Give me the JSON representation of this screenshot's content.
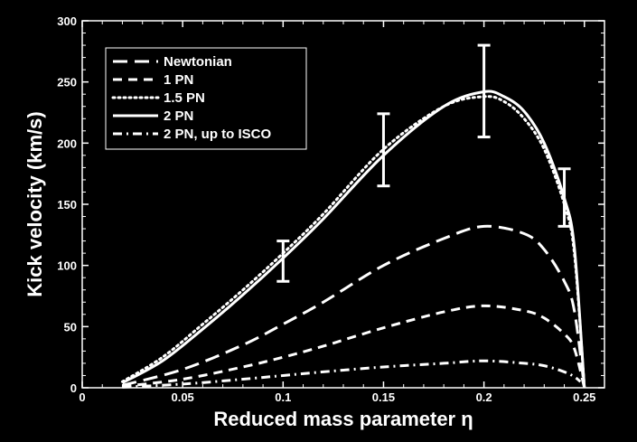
{
  "chart_data": {
    "type": "line",
    "xlabel": "Reduced mass parameter η",
    "ylabel": "Kick velocity (km/s)",
    "xlim": [
      0,
      0.26
    ],
    "ylim": [
      0,
      300
    ],
    "x_ticks": [
      0,
      0.05,
      0.1,
      0.15,
      0.2,
      0.25
    ],
    "x_tick_labels": [
      "0",
      "0.05",
      "0.1",
      "0.15",
      "0.2",
      "0.25"
    ],
    "y_ticks": [
      0,
      50,
      100,
      150,
      200,
      250,
      300
    ],
    "y_tick_labels": [
      "0",
      "50",
      "100",
      "150",
      "200",
      "250",
      "300"
    ],
    "legend_position": "top-left",
    "colors": {
      "background": "#000000",
      "foreground": "#ffffff"
    },
    "series": [
      {
        "name": "Newtonian",
        "dash": "dashed-long",
        "x": [
          0.02,
          0.05,
          0.08,
          0.1,
          0.12,
          0.15,
          0.18,
          0.2,
          0.22,
          0.23,
          0.24,
          0.245,
          0.25
        ],
        "y": [
          2,
          15,
          35,
          52,
          70,
          100,
          122,
          132,
          126,
          113,
          87,
          63,
          0
        ]
      },
      {
        "name": "1 PN",
        "dash": "dashed",
        "x": [
          0.02,
          0.05,
          0.08,
          0.1,
          0.12,
          0.15,
          0.18,
          0.2,
          0.22,
          0.23,
          0.24,
          0.245,
          0.25
        ],
        "y": [
          1,
          7,
          17,
          25,
          34,
          49,
          62,
          67,
          63,
          57,
          44,
          32,
          0
        ]
      },
      {
        "name": "1.5 PN",
        "dash": "dotted",
        "x": [
          0.02,
          0.04,
          0.06,
          0.08,
          0.1,
          0.12,
          0.15,
          0.18,
          0.2,
          0.21,
          0.22,
          0.23,
          0.24,
          0.245,
          0.25
        ],
        "y": [
          5,
          25,
          52,
          80,
          110,
          142,
          195,
          230,
          238,
          234,
          220,
          195,
          150,
          110,
          0
        ]
      },
      {
        "name": "2 PN",
        "dash": "solid",
        "x": [
          0.02,
          0.04,
          0.06,
          0.08,
          0.1,
          0.12,
          0.15,
          0.18,
          0.2,
          0.21,
          0.22,
          0.23,
          0.24,
          0.245,
          0.25
        ],
        "y": [
          4,
          22,
          48,
          76,
          106,
          138,
          190,
          230,
          242,
          238,
          226,
          200,
          155,
          115,
          0
        ]
      },
      {
        "name": "2 PN, up to ISCO",
        "dash": "dash-dot",
        "x": [
          0.02,
          0.05,
          0.08,
          0.1,
          0.12,
          0.15,
          0.18,
          0.2,
          0.22,
          0.23,
          0.24,
          0.245,
          0.248
        ],
        "y": [
          0.5,
          3,
          7,
          10,
          13,
          17,
          20,
          22,
          20,
          18,
          13,
          9,
          5
        ]
      }
    ],
    "error_bars": [
      {
        "x": 0.1,
        "low": 87,
        "high": 120
      },
      {
        "x": 0.15,
        "low": 165,
        "high": 224
      },
      {
        "x": 0.2,
        "low": 205,
        "high": 280
      },
      {
        "x": 0.24,
        "low": 132,
        "high": 179
      }
    ]
  }
}
